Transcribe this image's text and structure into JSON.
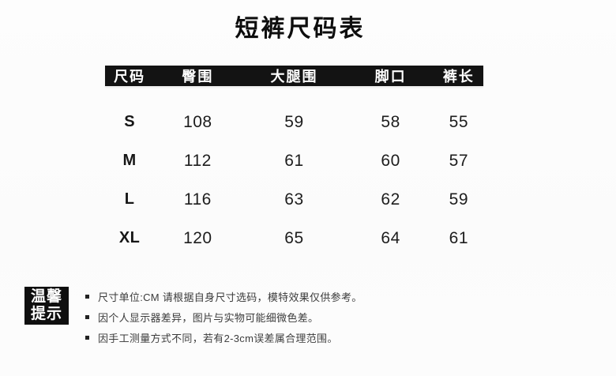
{
  "page": {
    "title": "短裤尺码表",
    "background_color": "#fcfcfc",
    "header_bar_color": "#131313",
    "header_text_color": "#ffffff",
    "body_text_color": "#1d1d1d"
  },
  "size_table": {
    "columns": [
      "尺码",
      "臀围",
      "大腿围",
      "脚口",
      "裤长"
    ],
    "rows": [
      {
        "size": "S",
        "hip": "108",
        "thigh": "59",
        "leg_opening": "58",
        "pants_length": "55"
      },
      {
        "size": "M",
        "hip": "112",
        "thigh": "61",
        "leg_opening": "60",
        "pants_length": "57"
      },
      {
        "size": "L",
        "hip": "116",
        "thigh": "63",
        "leg_opening": "62",
        "pants_length": "59"
      },
      {
        "size": "XL",
        "hip": "120",
        "thigh": "65",
        "leg_opening": "64",
        "pants_length": "61"
      }
    ]
  },
  "tips": {
    "badge_line1": "温馨",
    "badge_line2": "提示",
    "items": [
      "尺寸单位:CM  请根据自身尺寸选码，模特效果仅供参考。",
      "因个人显示器差异，图片与实物可能细微色差。",
      "因手工测量方式不同，若有2-3cm误差属合理范围。"
    ]
  }
}
